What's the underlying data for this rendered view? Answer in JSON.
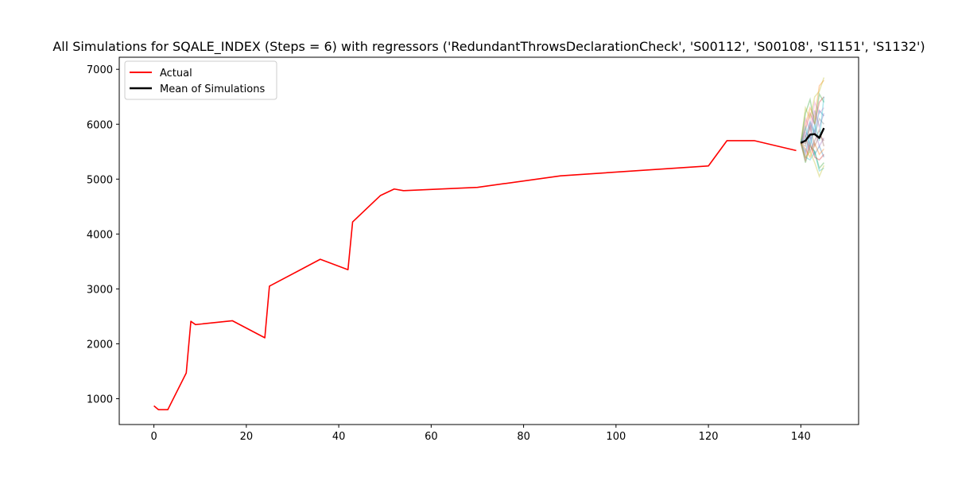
{
  "chart_data": {
    "type": "line",
    "title": "All Simulations for SQALE_INDEX (Steps = 6) with regressors ('RedundantThrowsDeclarationCheck', 'S00112', 'S00108', 'S1151', 'S1132')",
    "xlabel": "",
    "ylabel": "",
    "xlim": [
      -7.5,
      152.5
    ],
    "ylim": [
      530,
      7220
    ],
    "xticks": [
      0,
      20,
      40,
      60,
      80,
      100,
      120,
      140
    ],
    "yticks": [
      1000,
      2000,
      3000,
      4000,
      5000,
      6000,
      7000
    ],
    "grid": false,
    "legend_position": "top-left",
    "legend": [
      {
        "label": "Actual",
        "color": "#ff0000"
      },
      {
        "label": "Mean of Simulations",
        "color": "#000000"
      }
    ],
    "series": [
      {
        "name": "Actual",
        "color": "#ff0000",
        "x": [
          0,
          1,
          3,
          7,
          8,
          9,
          17,
          24,
          25,
          36,
          42,
          43,
          49,
          52,
          54,
          70,
          88,
          120,
          124,
          130,
          139
        ],
        "y": [
          870,
          800,
          800,
          1470,
          2410,
          2350,
          2420,
          2110,
          3050,
          3540,
          3350,
          4220,
          4700,
          4820,
          4790,
          4850,
          5060,
          5240,
          5700,
          5700,
          5520
        ]
      },
      {
        "name": "Mean of Simulations",
        "color": "#000000",
        "x": [
          140,
          141,
          142,
          143,
          144,
          145
        ],
        "y": [
          5660,
          5700,
          5810,
          5820,
          5750,
          5930
        ]
      }
    ],
    "simulations": {
      "x": [
        140,
        141,
        142,
        143,
        144,
        145
      ],
      "opacity": 0.35,
      "runs": [
        {
          "color": "#1f77b4",
          "y": [
            5660,
            5500,
            5800,
            5450,
            5600,
            5400
          ]
        },
        {
          "color": "#ff7f0e",
          "y": [
            5660,
            6000,
            6300,
            6100,
            6700,
            6800
          ]
        },
        {
          "color": "#2ca02c",
          "y": [
            5660,
            5300,
            5600,
            5500,
            5200,
            5300
          ]
        },
        {
          "color": "#d62728",
          "y": [
            5660,
            5900,
            6200,
            6000,
            6400,
            6500
          ]
        },
        {
          "color": "#9467bd",
          "y": [
            5660,
            5450,
            5700,
            5900,
            5600,
            5750
          ]
        },
        {
          "color": "#8c564b",
          "y": [
            5660,
            5800,
            5500,
            5700,
            5900,
            5600
          ]
        },
        {
          "color": "#e377c2",
          "y": [
            5660,
            6100,
            5900,
            6400,
            6200,
            6300
          ]
        },
        {
          "color": "#7f7f7f",
          "y": [
            5660,
            5600,
            6000,
            5800,
            6100,
            6000
          ]
        },
        {
          "color": "#bcbd22",
          "y": [
            5660,
            6300,
            6100,
            6500,
            6600,
            6850
          ]
        },
        {
          "color": "#17becf",
          "y": [
            5660,
            5400,
            5350,
            5500,
            5150,
            5200
          ]
        },
        {
          "color": "#1f77b4",
          "y": [
            5660,
            5750,
            6050,
            5850,
            6250,
            6150
          ]
        },
        {
          "color": "#ff7f0e",
          "y": [
            5660,
            5550,
            5400,
            5650,
            5450,
            5550
          ]
        },
        {
          "color": "#2ca02c",
          "y": [
            5660,
            6200,
            6450,
            6000,
            6550,
            6400
          ]
        },
        {
          "color": "#d62728",
          "y": [
            5660,
            5350,
            5650,
            5400,
            5350,
            5450
          ]
        },
        {
          "color": "#9467bd",
          "y": [
            5660,
            5850,
            5750,
            6250,
            5950,
            6200
          ]
        },
        {
          "color": "#8c564b",
          "y": [
            5660,
            5650,
            5950,
            5600,
            5800,
            5700
          ]
        },
        {
          "color": "#bcbd22",
          "y": [
            5660,
            5400,
            5500,
            5300,
            5050,
            5250
          ]
        },
        {
          "color": "#17becf",
          "y": [
            5660,
            5950,
            5600,
            6000,
            5700,
            6500
          ]
        }
      ]
    }
  }
}
